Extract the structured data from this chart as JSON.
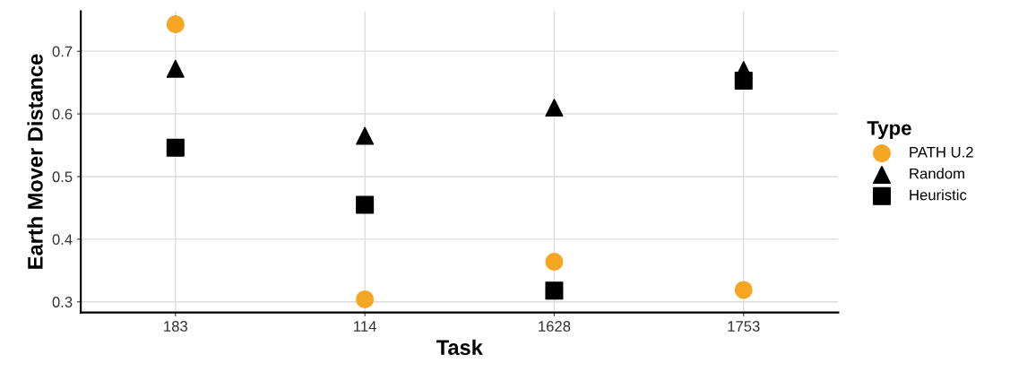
{
  "chart_data": {
    "type": "scatter",
    "xlabel": "Task",
    "ylabel": "Earth Mover Distance",
    "legend_title": "Type",
    "categories": [
      "183",
      "114",
      "1628",
      "1753"
    ],
    "series": [
      {
        "name": "PATH U.2",
        "color": "#f5a623",
        "marker": "circle",
        "values": [
          0.743,
          0.304,
          0.364,
          0.319
        ]
      },
      {
        "name": "Random",
        "color": "#000000",
        "marker": "triangle",
        "values": [
          0.672,
          0.565,
          0.61,
          0.67
        ]
      },
      {
        "name": "Heuristic",
        "color": "#000000",
        "marker": "square",
        "values": [
          0.546,
          0.455,
          0.318,
          0.653
        ]
      }
    ],
    "ylim": [
      0.283,
      0.764
    ],
    "yticks": [
      0.3,
      0.4,
      0.5,
      0.6,
      0.7
    ],
    "grid": true,
    "legend": "right"
  }
}
